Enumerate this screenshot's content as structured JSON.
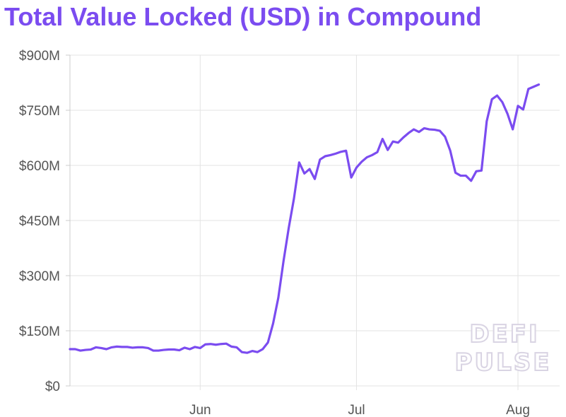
{
  "colors": {
    "title": "#7b4cf0",
    "line": "#7b4cf0",
    "grid": "#e3e3e3",
    "tick": "#555555"
  },
  "watermark": {
    "line1": "DEFI",
    "line2": "PULSE"
  },
  "chart_data": {
    "type": "line",
    "title": "Total Value Locked (USD) in Compound",
    "xlabel": "",
    "ylabel": "",
    "ylim": [
      0,
      900
    ],
    "y_ticks": [
      0,
      150,
      300,
      450,
      600,
      750,
      900
    ],
    "y_tick_labels": [
      "$0",
      "$150M",
      "$300M",
      "$450M",
      "$600M",
      "$750M",
      "$900M"
    ],
    "x_range": [
      "2020-05-07",
      "2020-08-09"
    ],
    "x_ticks": [
      {
        "date": "2020-06-01",
        "label": "Jun"
      },
      {
        "date": "2020-07-01",
        "label": "Jul"
      },
      {
        "date": "2020-08-01",
        "label": "Aug"
      }
    ],
    "grid": true,
    "series": [
      {
        "unit": "USD millions",
        "x": [
          "2020-05-07",
          "2020-05-08",
          "2020-05-09",
          "2020-05-10",
          "2020-05-11",
          "2020-05-12",
          "2020-05-13",
          "2020-05-14",
          "2020-05-15",
          "2020-05-16",
          "2020-05-17",
          "2020-05-18",
          "2020-05-19",
          "2020-05-20",
          "2020-05-21",
          "2020-05-22",
          "2020-05-23",
          "2020-05-24",
          "2020-05-25",
          "2020-05-26",
          "2020-05-27",
          "2020-05-28",
          "2020-05-29",
          "2020-05-30",
          "2020-05-31",
          "2020-06-01",
          "2020-06-02",
          "2020-06-03",
          "2020-06-04",
          "2020-06-05",
          "2020-06-06",
          "2020-06-07",
          "2020-06-08",
          "2020-06-09",
          "2020-06-10",
          "2020-06-11",
          "2020-06-12",
          "2020-06-13",
          "2020-06-14",
          "2020-06-15",
          "2020-06-16",
          "2020-06-17",
          "2020-06-18",
          "2020-06-19",
          "2020-06-20",
          "2020-06-21",
          "2020-06-22",
          "2020-06-23",
          "2020-06-24",
          "2020-06-25",
          "2020-06-26",
          "2020-06-27",
          "2020-06-28",
          "2020-06-29",
          "2020-06-30",
          "2020-07-01",
          "2020-07-02",
          "2020-07-03",
          "2020-07-04",
          "2020-07-05",
          "2020-07-06",
          "2020-07-07",
          "2020-07-08",
          "2020-07-09",
          "2020-07-10",
          "2020-07-11",
          "2020-07-12",
          "2020-07-13",
          "2020-07-14",
          "2020-07-15",
          "2020-07-16",
          "2020-07-17",
          "2020-07-18",
          "2020-07-19",
          "2020-07-20",
          "2020-07-21",
          "2020-07-22",
          "2020-07-23",
          "2020-07-24",
          "2020-07-25",
          "2020-07-26",
          "2020-07-27",
          "2020-07-28",
          "2020-07-29",
          "2020-07-30",
          "2020-07-31",
          "2020-08-01",
          "2020-08-02",
          "2020-08-03",
          "2020-08-04",
          "2020-08-05"
        ],
        "values": [
          100,
          100,
          96,
          98,
          99,
          105,
          103,
          100,
          105,
          107,
          106,
          106,
          104,
          105,
          105,
          103,
          96,
          96,
          98,
          99,
          99,
          97,
          104,
          100,
          106,
          103,
          113,
          114,
          112,
          114,
          115,
          107,
          105,
          92,
          90,
          95,
          92,
          100,
          118,
          170,
          240,
          340,
          430,
          510,
          608,
          578,
          590,
          563,
          616,
          625,
          628,
          632,
          637,
          640,
          567,
          594,
          610,
          622,
          628,
          636,
          672,
          642,
          665,
          662,
          676,
          688,
          698,
          691,
          701,
          698,
          697,
          694,
          678,
          640,
          580,
          572,
          572,
          558,
          584,
          586,
          720,
          780,
          790,
          772,
          740,
          698,
          762,
          752,
          808,
          814,
          820
        ]
      }
    ]
  }
}
